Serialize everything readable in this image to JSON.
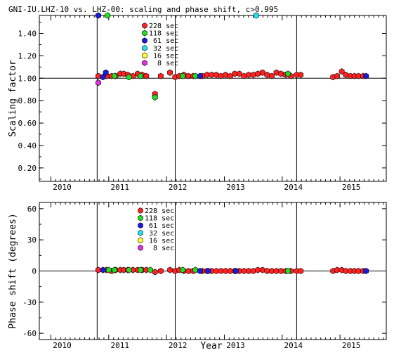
{
  "figure_title": "GNI-IU.LHZ-10 vs. LHZ-00: scaling and phase shift, c>0.995",
  "chart_data": [
    {
      "type": "scatter",
      "id": "scaling",
      "ylabel": "Scaling factor",
      "xlim": [
        2009.8,
        2015.8
      ],
      "ylim": [
        0.08,
        1.56
      ],
      "yticks": [
        0.2,
        0.4,
        0.6,
        0.8,
        1.0,
        1.2,
        1.4
      ],
      "ytick_labels": [
        "0.20",
        "0.40",
        "0.60",
        "0.80",
        "1.00",
        "1.20",
        "1.40"
      ],
      "xticks": [
        2010,
        2011,
        2012,
        2013,
        2014,
        2015
      ],
      "xtick_labels": [
        "2010",
        "2011",
        "2012",
        "2013",
        "2014",
        "2015"
      ],
      "reference_line": 1.0,
      "event_lines": [
        2010.8,
        2012.15,
        2014.25
      ],
      "legend": {
        "placement": "top-center"
      },
      "series": [
        {
          "name": "228 sec",
          "color": "#ff2222",
          "points": [
            [
              2010.82,
              1.02
            ],
            [
              2010.96,
              1.02
            ],
            [
              2011.05,
              1.02
            ],
            [
              2011.12,
              1.02
            ],
            [
              2011.2,
              1.04
            ],
            [
              2011.26,
              1.04
            ],
            [
              2011.33,
              1.03
            ],
            [
              2011.42,
              1.02
            ],
            [
              2011.5,
              1.04
            ],
            [
              2011.58,
              1.03
            ],
            [
              2011.65,
              1.02
            ],
            [
              2011.8,
              0.86
            ],
            [
              2011.9,
              1.02
            ],
            [
              2012.06,
              1.05
            ],
            [
              2012.15,
              1.01
            ],
            [
              2012.22,
              1.02
            ],
            [
              2012.3,
              1.03
            ],
            [
              2012.38,
              1.02
            ],
            [
              2012.46,
              1.02
            ],
            [
              2012.62,
              1.02
            ],
            [
              2012.7,
              1.03
            ],
            [
              2012.78,
              1.03
            ],
            [
              2012.86,
              1.03
            ],
            [
              2012.94,
              1.02
            ],
            [
              2013.02,
              1.03
            ],
            [
              2013.1,
              1.02
            ],
            [
              2013.18,
              1.04
            ],
            [
              2013.26,
              1.04
            ],
            [
              2013.34,
              1.02
            ],
            [
              2013.42,
              1.03
            ],
            [
              2013.5,
              1.03
            ],
            [
              2013.58,
              1.04
            ],
            [
              2013.66,
              1.05
            ],
            [
              2013.74,
              1.03
            ],
            [
              2013.82,
              1.02
            ],
            [
              2013.9,
              1.05
            ],
            [
              2013.98,
              1.04
            ],
            [
              2014.06,
              1.03
            ],
            [
              2014.15,
              1.02
            ],
            [
              2014.25,
              1.03
            ],
            [
              2014.32,
              1.03
            ],
            [
              2014.88,
              1.01
            ],
            [
              2014.95,
              1.02
            ],
            [
              2015.03,
              1.06
            ],
            [
              2015.1,
              1.03
            ],
            [
              2015.18,
              1.02
            ],
            [
              2015.25,
              1.02
            ],
            [
              2015.32,
              1.02
            ],
            [
              2015.4,
              1.02
            ]
          ]
        },
        {
          "name": "118 sec",
          "color": "#22dd22",
          "points": [
            [
              2010.98,
              1.56
            ],
            [
              2011.1,
              1.02
            ],
            [
              2011.35,
              1.01
            ],
            [
              2011.55,
              1.02
            ],
            [
              2011.8,
              0.83
            ],
            [
              2012.28,
              1.02
            ],
            [
              2012.5,
              1.02
            ],
            [
              2014.1,
              1.04
            ]
          ]
        },
        {
          "name": "61 sec",
          "color": "#1a1adc",
          "points": [
            [
              2010.82,
              1.56
            ],
            [
              2010.9,
              1.01
            ],
            [
              2010.95,
              1.05
            ],
            [
              2012.58,
              1.02
            ],
            [
              2015.45,
              1.02
            ]
          ]
        },
        {
          "name": "32 sec",
          "color": "#22e0f0",
          "points": [
            [
              2013.55,
              1.56
            ]
          ]
        },
        {
          "name": "16 sec",
          "color": "#ffff33",
          "points": []
        },
        {
          "name": "8 sec",
          "color": "#e030e0",
          "points": [
            [
              2010.82,
              0.96
            ]
          ]
        }
      ]
    },
    {
      "type": "scatter",
      "id": "phase",
      "ylabel": "Phase shift (degrees)",
      "xlabel": "Year",
      "xlim": [
        2009.8,
        2015.8
      ],
      "ylim": [
        -66,
        66
      ],
      "yticks": [
        -60,
        -30,
        0,
        30,
        60
      ],
      "ytick_labels": [
        "-60",
        "-30",
        "0",
        "30",
        "60"
      ],
      "xticks": [
        2010,
        2011,
        2012,
        2013,
        2014,
        2015
      ],
      "xtick_labels": [
        "2010",
        "2011",
        "2012",
        "2013",
        "2014",
        "2015"
      ],
      "reference_line": 0,
      "event_lines": [
        2010.8,
        2012.15,
        2014.25
      ],
      "legend": {
        "placement": "top-center"
      },
      "series": [
        {
          "name": "228 sec",
          "color": "#ff2222",
          "points": [
            [
              2010.82,
              1
            ],
            [
              2010.96,
              1
            ],
            [
              2011.05,
              0
            ],
            [
              2011.12,
              1
            ],
            [
              2011.2,
              1
            ],
            [
              2011.26,
              1
            ],
            [
              2011.33,
              1
            ],
            [
              2011.42,
              1
            ],
            [
              2011.5,
              1
            ],
            [
              2011.58,
              1
            ],
            [
              2011.65,
              1
            ],
            [
              2011.8,
              -1
            ],
            [
              2011.9,
              0
            ],
            [
              2012.06,
              1
            ],
            [
              2012.15,
              0
            ],
            [
              2012.22,
              1
            ],
            [
              2012.3,
              0
            ],
            [
              2012.38,
              0
            ],
            [
              2012.46,
              0
            ],
            [
              2012.62,
              0
            ],
            [
              2012.7,
              0
            ],
            [
              2012.78,
              0
            ],
            [
              2012.86,
              0
            ],
            [
              2012.94,
              0
            ],
            [
              2013.02,
              0
            ],
            [
              2013.1,
              0
            ],
            [
              2013.18,
              0
            ],
            [
              2013.26,
              0
            ],
            [
              2013.34,
              0
            ],
            [
              2013.42,
              0
            ],
            [
              2013.5,
              0
            ],
            [
              2013.58,
              1
            ],
            [
              2013.66,
              1
            ],
            [
              2013.74,
              0
            ],
            [
              2013.82,
              0
            ],
            [
              2013.9,
              0
            ],
            [
              2013.98,
              0
            ],
            [
              2014.06,
              0
            ],
            [
              2014.15,
              0
            ],
            [
              2014.25,
              0
            ],
            [
              2014.32,
              0
            ],
            [
              2014.88,
              0
            ],
            [
              2014.95,
              1
            ],
            [
              2015.03,
              1
            ],
            [
              2015.1,
              0
            ],
            [
              2015.18,
              0
            ],
            [
              2015.25,
              0
            ],
            [
              2015.32,
              0
            ],
            [
              2015.4,
              0
            ]
          ]
        },
        {
          "name": "118 sec",
          "color": "#22dd22",
          "points": [
            [
              2011.0,
              1
            ],
            [
              2011.1,
              1
            ],
            [
              2011.35,
              1
            ],
            [
              2011.55,
              1
            ],
            [
              2011.72,
              1
            ],
            [
              2012.28,
              1
            ],
            [
              2012.5,
              1
            ],
            [
              2014.1,
              0
            ]
          ]
        },
        {
          "name": "61 sec",
          "color": "#1a1adc",
          "points": [
            [
              2010.9,
              1
            ],
            [
              2012.58,
              0
            ],
            [
              2012.72,
              0
            ],
            [
              2013.2,
              0
            ],
            [
              2015.45,
              0
            ]
          ]
        },
        {
          "name": "32 sec",
          "color": "#22e0f0",
          "points": []
        },
        {
          "name": "16 sec",
          "color": "#ffff33",
          "points": []
        },
        {
          "name": "8 sec",
          "color": "#e030e0",
          "points": []
        }
      ]
    }
  ]
}
